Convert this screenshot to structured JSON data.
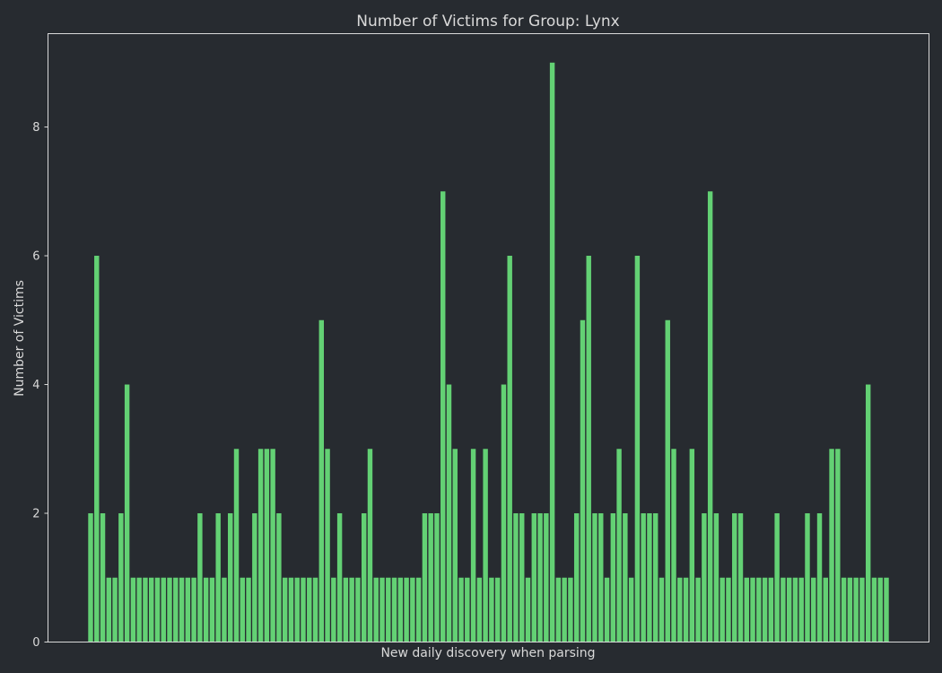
{
  "chart_data": {
    "type": "bar",
    "title": "Number of Victims for Group: Lynx",
    "xlabel": "New daily discovery when parsing",
    "ylabel": "Number of Victims",
    "ylim": [
      0,
      9.45
    ],
    "yticks": [
      0,
      2,
      4,
      6,
      8
    ],
    "ytick_labels": [
      "0",
      "2",
      "4",
      "6",
      "8"
    ],
    "grid": false,
    "bar_color": "#63d174",
    "values": [
      2,
      6,
      2,
      1,
      1,
      2,
      4,
      1,
      1,
      1,
      1,
      1,
      1,
      1,
      1,
      1,
      1,
      1,
      2,
      1,
      1,
      2,
      1,
      2,
      3,
      1,
      1,
      2,
      3,
      3,
      3,
      2,
      1,
      1,
      1,
      1,
      1,
      1,
      5,
      3,
      1,
      2,
      1,
      1,
      1,
      2,
      3,
      1,
      1,
      1,
      1,
      1,
      1,
      1,
      1,
      2,
      2,
      2,
      7,
      4,
      3,
      1,
      1,
      3,
      1,
      3,
      1,
      1,
      4,
      6,
      2,
      2,
      1,
      2,
      2,
      2,
      9,
      1,
      1,
      1,
      2,
      5,
      6,
      2,
      2,
      1,
      2,
      3,
      2,
      1,
      6,
      2,
      2,
      2,
      1,
      5,
      3,
      1,
      1,
      3,
      1,
      2,
      7,
      2,
      1,
      1,
      2,
      2,
      1,
      1,
      1,
      1,
      1,
      2,
      1,
      1,
      1,
      1,
      2,
      1,
      2,
      1,
      3,
      3,
      1,
      1,
      1,
      1,
      4,
      1,
      1,
      1
    ]
  },
  "colors": {
    "background": "#272b30",
    "axes": "#d9d9d9",
    "text": "#d9d9d9",
    "bar": "#63d174"
  }
}
